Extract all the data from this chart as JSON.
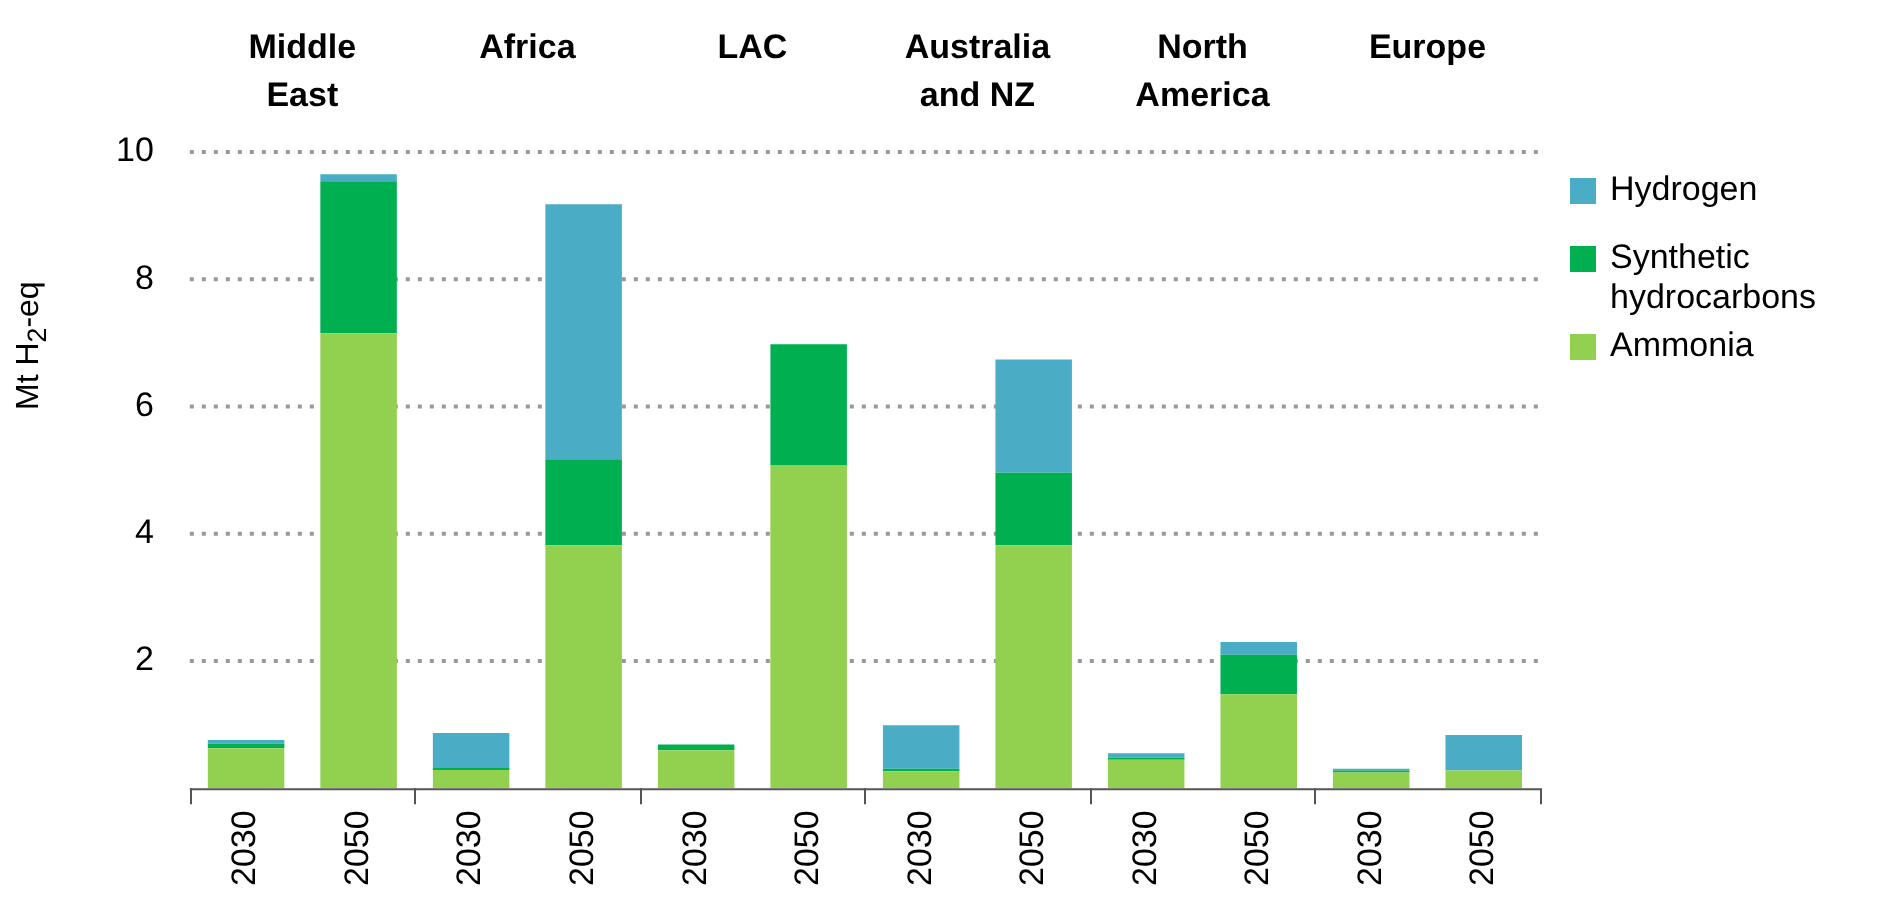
{
  "chart_data": {
    "type": "bar",
    "stacked": true,
    "ylabel": "Mt H$_{2}$-eq",
    "categories": [
      "2030",
      "2050",
      "2030",
      "2050",
      "2030",
      "2050",
      "2030",
      "2050",
      "2030",
      "2050",
      "2030",
      "2050"
    ],
    "annotations": [
      "Middle East",
      "Africa",
      "LAC",
      "Australia and NZ",
      "North America",
      "Europe"
    ],
    "series": [
      {
        "name": "Ammonia",
        "color": "#92d050",
        "values": [
          0.63,
          7.15,
          0.29,
          3.82,
          0.6,
          5.08,
          0.27,
          3.82,
          0.45,
          1.48,
          0.25,
          0.28
        ]
      },
      {
        "name": "Synthetic hydrocarbons",
        "color": "#00b050",
        "values": [
          0.07,
          2.39,
          0.03,
          1.35,
          0.09,
          1.9,
          0.04,
          1.14,
          0.03,
          0.62,
          0.03,
          0
        ]
      },
      {
        "name": "Hydrogen",
        "color": "#4bacc6",
        "values": [
          0.06,
          0.11,
          0.55,
          4.01,
          0,
          0,
          0.68,
          1.78,
          0.07,
          0.2,
          0.03,
          0.56
        ]
      }
    ],
    "ylim": [
      0,
      10
    ],
    "yticks": [
      2,
      4,
      6,
      8,
      10
    ],
    "grid": "y",
    "legend": "right"
  }
}
